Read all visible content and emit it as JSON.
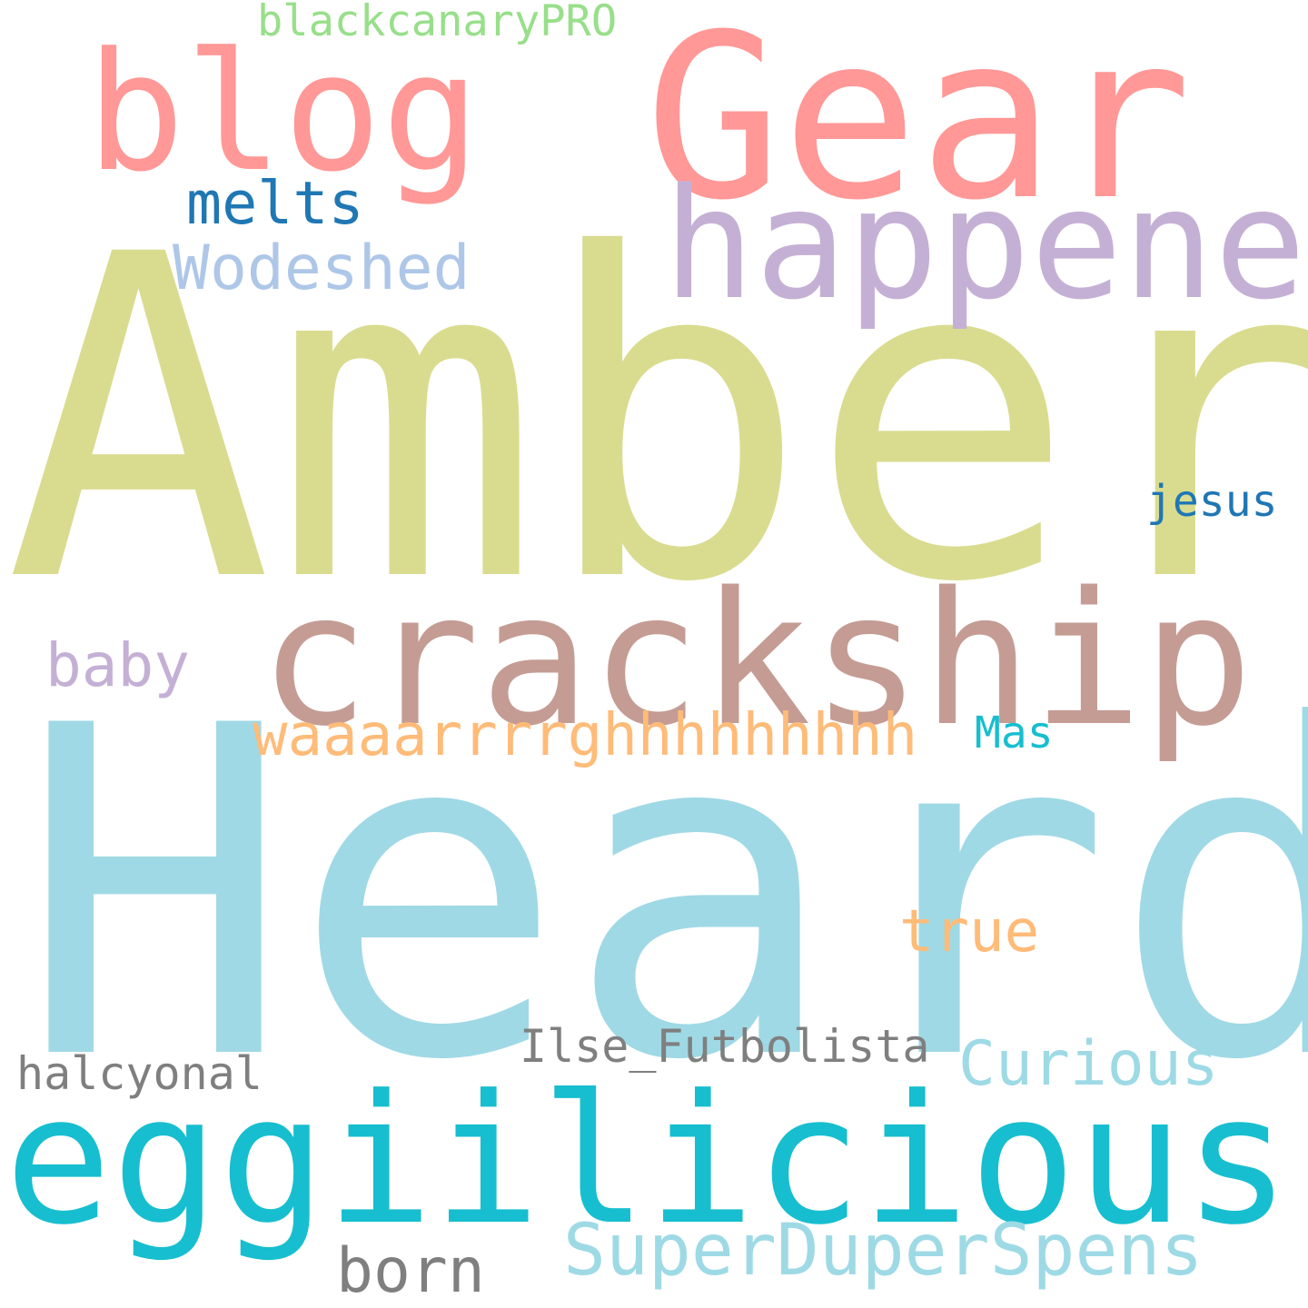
{
  "words": [
    {
      "text": "Heard",
      "color": "#9fd9e5"
    },
    {
      "text": "Amber",
      "color": "#d9dc8f"
    },
    {
      "text": "Gear",
      "color": "#ff9896"
    },
    {
      "text": "blog",
      "color": "#ff9896"
    },
    {
      "text": "crackship",
      "color": "#c49c94"
    },
    {
      "text": "eggiilicious",
      "color": "#17becf"
    },
    {
      "text": "happened",
      "color": "#c5b0d5"
    },
    {
      "text": "waaaarrrrghhhhhhhhh",
      "color": "#ffbb78"
    },
    {
      "text": "SuperDuperSpens",
      "color": "#9edae5"
    },
    {
      "text": "Wodeshed",
      "color": "#aec7e8"
    },
    {
      "text": "Curious",
      "color": "#9edae5"
    },
    {
      "text": "blackcanaryPRO",
      "color": "#98df8a"
    },
    {
      "text": "melts",
      "color": "#1f77b4"
    },
    {
      "text": "baby",
      "color": "#c5b0d5"
    },
    {
      "text": "born",
      "color": "#7f7f7f"
    },
    {
      "text": "true",
      "color": "#ffbb78"
    },
    {
      "text": "Ilse_Futbolista",
      "color": "#7f7f7f"
    },
    {
      "text": "halcyonal",
      "color": "#7f7f7f"
    },
    {
      "text": "jesus",
      "color": "#1f77b4"
    },
    {
      "text": "Mas",
      "color": "#17becf"
    }
  ]
}
